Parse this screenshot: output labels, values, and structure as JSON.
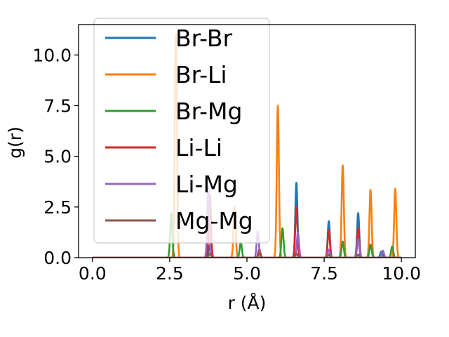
{
  "chart_data": {
    "type": "line",
    "xlabel": "r (Å)",
    "ylabel": "g(r)",
    "xlim": [
      -0.45,
      10.45
    ],
    "ylim": [
      0.0,
      11.5
    ],
    "xticks": [
      0.0,
      2.5,
      5.0,
      7.5,
      10.0
    ],
    "xtick_labels": [
      "0.0",
      "2.5",
      "5.0",
      "7.5",
      "10.0"
    ],
    "yticks": [
      0.0,
      2.5,
      5.0,
      7.5,
      10.0
    ],
    "ytick_labels": [
      "0.0",
      "2.5",
      "5.0",
      "7.5",
      "10.0"
    ],
    "x_range": [
      0.0,
      10.0
    ],
    "peak_width": 0.035,
    "grid": false,
    "legend_position": "upper-left",
    "series": [
      {
        "name": "Br-Br",
        "color": "#1f77b4",
        "peaks": [
          [
            3.8,
            0.6
          ],
          [
            6.6,
            3.7
          ],
          [
            7.65,
            1.8
          ],
          [
            8.6,
            2.2
          ],
          [
            9.35,
            0.3
          ]
        ]
      },
      {
        "name": "Br-Li",
        "color": "#ff7f0e",
        "peaks": [
          [
            2.7,
            11.0
          ],
          [
            4.6,
            2.5
          ],
          [
            6.0,
            7.5
          ],
          [
            8.1,
            4.55
          ],
          [
            9.0,
            3.35
          ],
          [
            9.8,
            3.4
          ]
        ]
      },
      {
        "name": "Br-Mg",
        "color": "#2ca02c",
        "peaks": [
          [
            2.55,
            2.2
          ],
          [
            4.8,
            0.75
          ],
          [
            6.15,
            1.45
          ],
          [
            8.1,
            0.8
          ],
          [
            9.0,
            0.65
          ],
          [
            9.7,
            0.55
          ]
        ]
      },
      {
        "name": "Li-Li",
        "color": "#d62728",
        "peaks": [
          [
            3.8,
            3.1
          ],
          [
            5.4,
            0.4
          ],
          [
            6.6,
            2.5
          ],
          [
            7.65,
            1.35
          ],
          [
            8.6,
            1.45
          ]
        ]
      },
      {
        "name": "Li-Mg",
        "color": "#9467bd",
        "peaks": [
          [
            3.75,
            3.5
          ],
          [
            5.35,
            1.3
          ],
          [
            6.65,
            1.25
          ],
          [
            7.65,
            0.4
          ],
          [
            8.6,
            0.9
          ],
          [
            9.4,
            0.35
          ]
        ]
      },
      {
        "name": "Mg-Mg",
        "color": "#8c564b",
        "peaks": [
          [
            3.8,
            0.2
          ],
          [
            5.4,
            0.2
          ],
          [
            6.6,
            0.2
          ],
          [
            7.65,
            0.15
          ],
          [
            8.6,
            0.15
          ]
        ]
      }
    ]
  }
}
